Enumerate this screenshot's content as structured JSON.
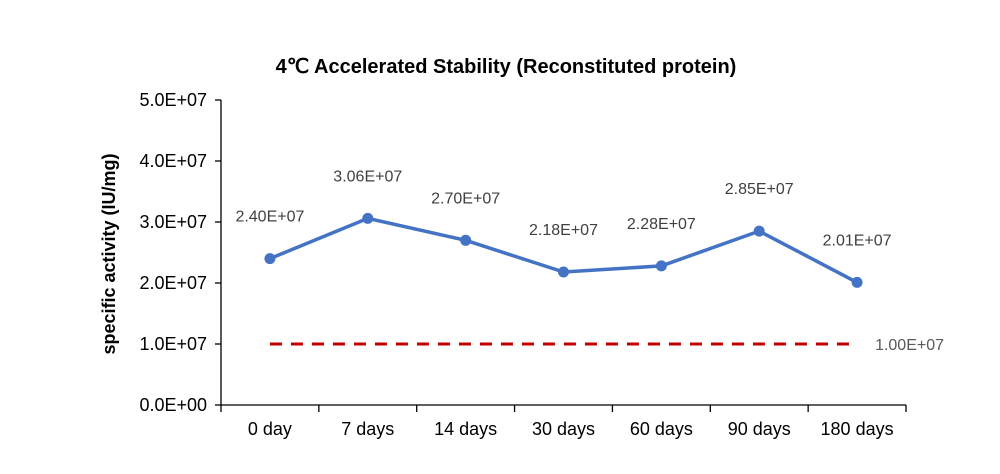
{
  "chart_data": {
    "type": "line",
    "title": "4℃ Accelerated  Stability (Reconstituted protein)",
    "xlabel": "",
    "ylabel": "specific activity (IU/mg)",
    "categories": [
      "0 day",
      "7 days",
      "14 days",
      "30 days",
      "60 days",
      "90 days",
      "180 days"
    ],
    "series": [
      {
        "values": [
          24000000,
          30600000,
          27000000,
          21800000,
          22800000,
          28500000,
          20100000
        ],
        "labels": [
          "2.40E+07",
          "3.06E+07",
          "2.70E+07",
          "2.18E+07",
          "2.28E+07",
          "2.85E+07",
          "2.01E+07"
        ],
        "color": "#4472C4"
      },
      {
        "values": [
          10000000,
          10000000,
          10000000,
          10000000,
          10000000,
          10000000,
          10000000
        ],
        "label": "1.00E+07",
        "color": "#C00000",
        "dashed": true
      }
    ],
    "ylim": [
      0,
      50000000
    ],
    "yticks": [
      0,
      10000000,
      20000000,
      30000000,
      40000000,
      50000000
    ],
    "ytick_labels": [
      "0.0E+00",
      "1.0E+07",
      "2.0E+07",
      "3.0E+07",
      "4.0E+07",
      "5.0E+07"
    ],
    "grid": false,
    "legend": "none"
  }
}
